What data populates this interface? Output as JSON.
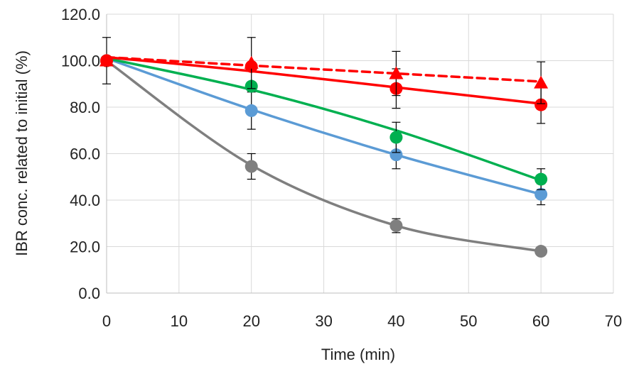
{
  "chart_data": {
    "type": "scatter",
    "title": "",
    "xlabel": "Time (min)",
    "ylabel": "IBR conc. related to initial (%)",
    "xlim": [
      0,
      70
    ],
    "ylim": [
      0,
      120
    ],
    "x_ticks": [
      0,
      10,
      20,
      30,
      40,
      50,
      60,
      70
    ],
    "x_tick_labels": [
      "0",
      "10",
      "20",
      "30",
      "40",
      "50",
      "60",
      "70"
    ],
    "y_ticks": [
      0,
      20,
      40,
      60,
      80,
      100,
      120
    ],
    "y_tick_labels": [
      "0.0",
      "20.0",
      "40.0",
      "60.0",
      "80.0",
      "100.0",
      "120.0"
    ],
    "grid": true,
    "legend": "none",
    "series": [
      {
        "name": "red triangles (dashed)",
        "color": "#ff0000",
        "marker": "triangle",
        "line_style": "dashed",
        "x": [
          0,
          20,
          40,
          60
        ],
        "values": [
          100,
          99,
          94.5,
          90.5
        ],
        "error": [
          10,
          11,
          9.5,
          9
        ],
        "fit": [
          101.5,
          97.9,
          94.5,
          91.0
        ]
      },
      {
        "name": "red circles",
        "color": "#ff0000",
        "marker": "circle",
        "line_style": "solid",
        "x": [
          0,
          20,
          40,
          60
        ],
        "values": [
          100,
          97.5,
          88,
          81
        ],
        "error": [
          0,
          0,
          8.5,
          8
        ],
        "fit": [
          101.5,
          95.5,
          88.5,
          81.5
        ]
      },
      {
        "name": "green circles",
        "color": "#00b050",
        "marker": "circle",
        "line_style": "solid",
        "x": [
          0,
          20,
          40,
          60
        ],
        "values": [
          100,
          89,
          67,
          49
        ],
        "error": [
          0,
          0,
          6.5,
          4.5
        ],
        "fit": [
          101,
          87.5,
          70,
          48.5
        ]
      },
      {
        "name": "blue circles",
        "color": "#5b9bd5",
        "marker": "circle",
        "line_style": "solid",
        "x": [
          0,
          20,
          40,
          60
        ],
        "values": [
          100,
          78.5,
          59.5,
          42.5
        ],
        "error": [
          0,
          8,
          6,
          4.5
        ],
        "fit": [
          101,
          79,
          59.5,
          42.5
        ]
      },
      {
        "name": "gray circles",
        "color": "#7f7f7f",
        "marker": "circle",
        "line_style": "solid",
        "x": [
          0,
          20,
          40,
          60
        ],
        "values": [
          100,
          54.5,
          29,
          18
        ],
        "error": [
          0,
          5.5,
          3,
          0
        ],
        "fit": [
          100,
          55,
          29,
          18
        ]
      }
    ]
  }
}
